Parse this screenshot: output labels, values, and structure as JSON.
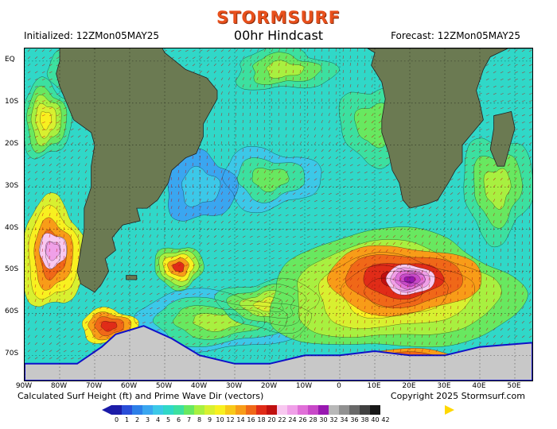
{
  "brand": "STORMSURF",
  "header": {
    "initialized": "Initialized: 12ZMon05MAY25",
    "title": "00hr Hindcast",
    "forecast": "Forecast: 12ZMon05MAY25"
  },
  "footer": {
    "left": "Calculated Surf Height (ft) and Prime Wave Dir (vectors)",
    "right": "Copyright 2025 Stormsurf.com"
  },
  "map": {
    "lon_range": [
      -90,
      55
    ],
    "lat_range": [
      -76,
      3
    ],
    "lat_labels": [
      {
        "lat": 0,
        "text": "EQ"
      },
      {
        "lat": -10,
        "text": "10S"
      },
      {
        "lat": -20,
        "text": "20S"
      },
      {
        "lat": -30,
        "text": "30S"
      },
      {
        "lat": -40,
        "text": "40S"
      },
      {
        "lat": -50,
        "text": "50S"
      },
      {
        "lat": -60,
        "text": "60S"
      },
      {
        "lat": -70,
        "text": "70S"
      }
    ],
    "lon_labels": [
      {
        "lon": -90,
        "text": "90W"
      },
      {
        "lon": -80,
        "text": "80W"
      },
      {
        "lon": -70,
        "text": "70W"
      },
      {
        "lon": -60,
        "text": "60W"
      },
      {
        "lon": -50,
        "text": "50W"
      },
      {
        "lon": -40,
        "text": "40W"
      },
      {
        "lon": -30,
        "text": "30W"
      },
      {
        "lon": -20,
        "text": "20W"
      },
      {
        "lon": -10,
        "text": "10W"
      },
      {
        "lon": 0,
        "text": "0"
      },
      {
        "lon": 10,
        "text": "10E"
      },
      {
        "lon": 20,
        "text": "20E"
      },
      {
        "lon": 30,
        "text": "30E"
      },
      {
        "lon": 40,
        "text": "40E"
      },
      {
        "lon": 50,
        "text": "50E"
      }
    ],
    "sea_color": "#2bb6c0",
    "land_color": "#6b7a52",
    "ice_color": "#c8c8c8",
    "ice_edge_color": "#1010c8",
    "features": [
      {
        "name": "south-atlantic-storm",
        "lon": 20,
        "lat": -51,
        "peak_ft": 30
      },
      {
        "name": "mid-atlantic-low",
        "lon": -47,
        "lat": -49,
        "peak_ft": 16
      },
      {
        "name": "southeast-pacific-swell",
        "lon": -82,
        "lat": -45,
        "peak_ft": 22
      },
      {
        "name": "drake-passage-swell",
        "lon": -67,
        "lat": -63,
        "peak_ft": 18
      }
    ]
  },
  "legend": {
    "items": [
      {
        "label": "0",
        "color": "#1c1ca8"
      },
      {
        "label": "1",
        "color": "#2a4ed8"
      },
      {
        "label": "2",
        "color": "#2d7fe8"
      },
      {
        "label": "3",
        "color": "#3aa6f0"
      },
      {
        "label": "4",
        "color": "#3cc8e8"
      },
      {
        "label": "5",
        "color": "#30d8c8"
      },
      {
        "label": "6",
        "color": "#3ce0a0"
      },
      {
        "label": "7",
        "color": "#68e860"
      },
      {
        "label": "8",
        "color": "#a8f040"
      },
      {
        "label": "9",
        "color": "#d8f030"
      },
      {
        "label": "10",
        "color": "#f8f020"
      },
      {
        "label": "12",
        "color": "#f8c818"
      },
      {
        "label": "14",
        "color": "#f89c18"
      },
      {
        "label": "16",
        "color": "#f06818"
      },
      {
        "label": "18",
        "color": "#e02c18"
      },
      {
        "label": "20",
        "color": "#c01010"
      },
      {
        "label": "22",
        "color": "#f8c8f0"
      },
      {
        "label": "24",
        "color": "#f0a0e8"
      },
      {
        "label": "26",
        "color": "#e070d8"
      },
      {
        "label": "28",
        "color": "#c848c8"
      },
      {
        "label": "30",
        "color": "#9818b0"
      },
      {
        "label": "32",
        "color": "#b8b8b8"
      },
      {
        "label": "34",
        "color": "#909090"
      },
      {
        "label": "36",
        "color": "#686868"
      },
      {
        "label": "38",
        "color": "#404040"
      },
      {
        "label": "40",
        "color": "#181818"
      },
      {
        "label": "42",
        "color": "#ffffff"
      }
    ]
  }
}
